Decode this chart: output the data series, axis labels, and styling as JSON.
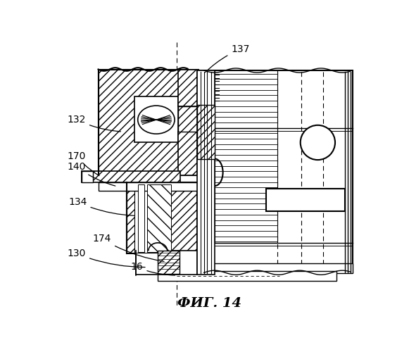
{
  "title": "ФИГ. 14",
  "bg_color": "#ffffff",
  "line_color": "#000000"
}
